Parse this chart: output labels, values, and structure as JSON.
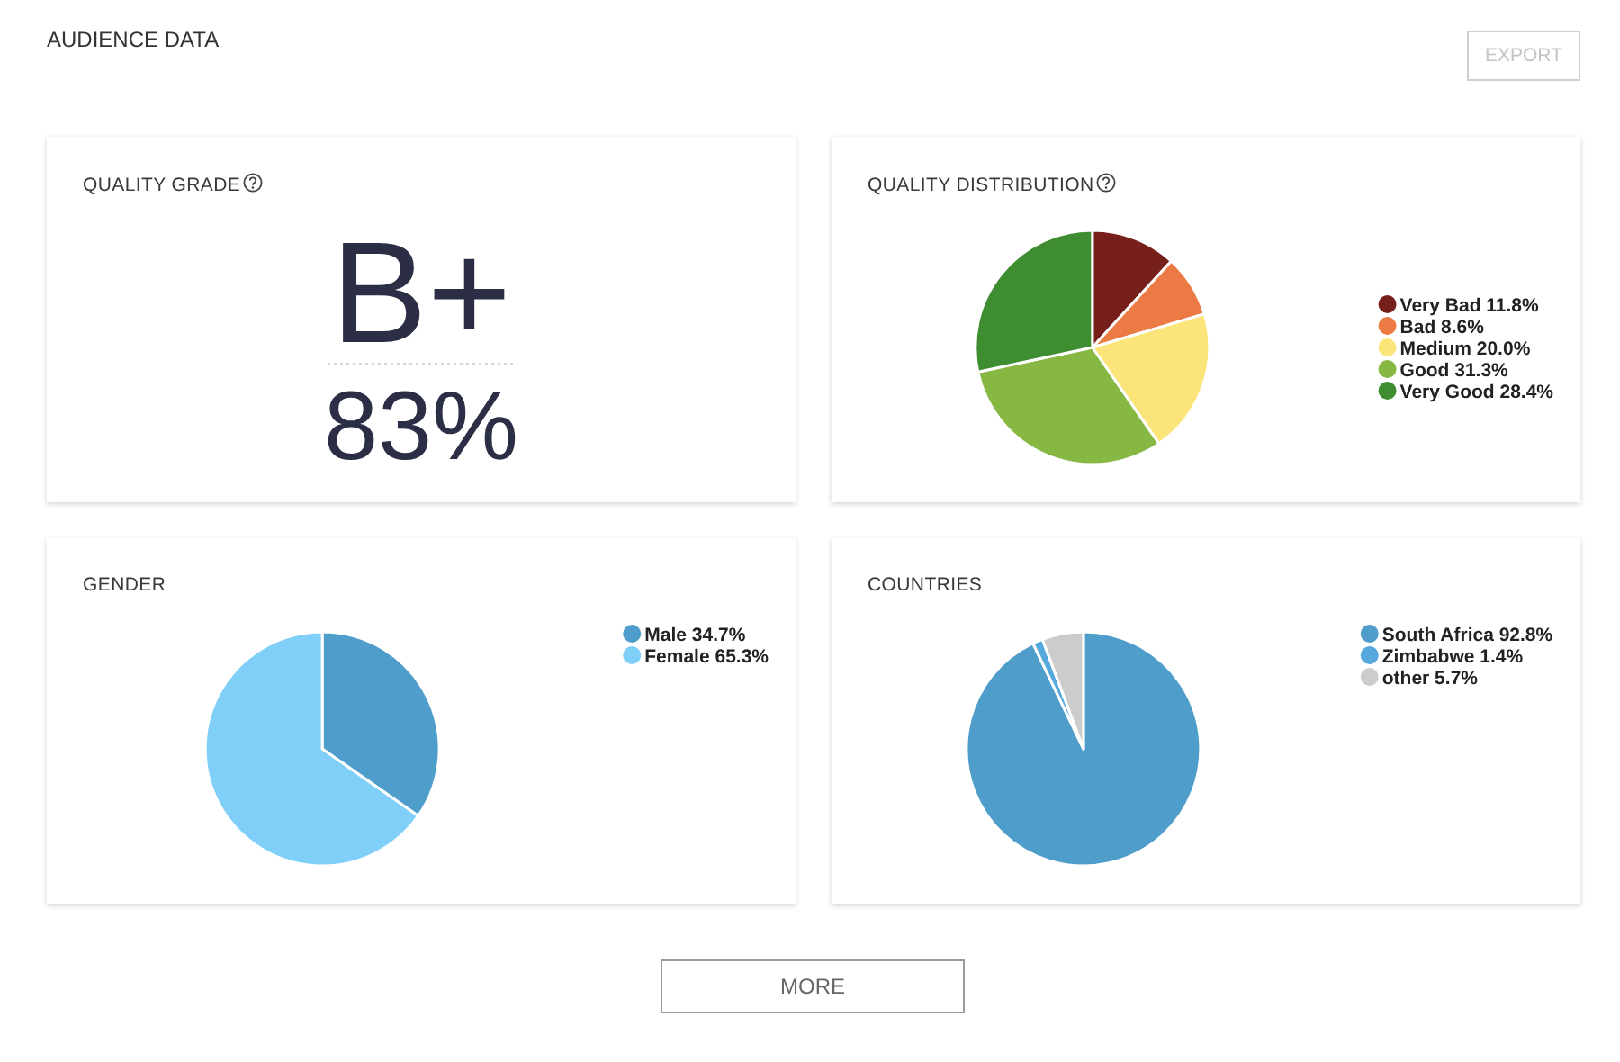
{
  "chart_data": [
    {
      "type": "other",
      "title": "AUDIENCE DATA",
      "annotations": [
        "EXPORT",
        "MORE"
      ]
    },
    {
      "type": "other",
      "title": "QUALITY GRADE",
      "annotations": [
        "B+",
        "83%"
      ]
    },
    {
      "type": "pie",
      "title": "QUALITY DISTRIBUTION",
      "categories": [
        "Very Bad",
        "Bad",
        "Medium",
        "Good",
        "Very Good"
      ],
      "values": [
        11.8,
        8.6,
        20.0,
        31.3,
        28.4
      ],
      "value_labels": [
        "11.8%",
        "8.6%",
        "20.0%",
        "31.3%",
        "28.4%"
      ],
      "colors": [
        "#761f1b",
        "#ec7a44",
        "#fbe57a",
        "#88b844",
        "#3e8d31"
      ],
      "legend": "right"
    },
    {
      "type": "pie",
      "title": "GENDER",
      "categories": [
        "Male",
        "Female"
      ],
      "values": [
        34.7,
        65.3
      ],
      "value_labels": [
        "34.7%",
        "65.3%"
      ],
      "colors": [
        "#4f9dcb",
        "#80cff8"
      ],
      "legend": "top right"
    },
    {
      "type": "pie",
      "title": "COUNTRIES",
      "categories": [
        "South Africa",
        "Zimbabwe",
        "other"
      ],
      "values": [
        92.8,
        1.4,
        5.7
      ],
      "value_labels": [
        "92.8%",
        "1.4%",
        "5.7%"
      ],
      "colors": [
        "#4f9dcb",
        "#55a9dc",
        "#cccccc"
      ],
      "legend": "top right"
    }
  ]
}
